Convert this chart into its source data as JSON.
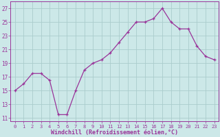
{
  "x": [
    0,
    1,
    2,
    3,
    4,
    5,
    6,
    7,
    8,
    9,
    10,
    11,
    12,
    13,
    14,
    15,
    16,
    17,
    18,
    19,
    20,
    21,
    22,
    23
  ],
  "y": [
    15,
    16,
    17.5,
    17.5,
    16.5,
    11.5,
    11.5,
    15,
    18,
    19,
    19.5,
    20.5,
    22,
    23.5,
    25,
    25,
    25.5,
    27,
    25,
    24,
    24,
    21.5,
    20,
    19.5
  ],
  "line_color": "#993399",
  "marker": "+",
  "bg_color": "#cce8e8",
  "grid_color": "#aacccc",
  "xlabel": "Windchill (Refroidissement éolien,°C)",
  "xlabel_color": "#993399",
  "tick_color": "#993399",
  "axis_color": "#993399",
  "yticks": [
    11,
    13,
    15,
    17,
    19,
    21,
    23,
    25,
    27
  ],
  "xtick_labels": [
    "0",
    "1",
    "2",
    "3",
    "4",
    "5",
    "6",
    "7",
    "8",
    "9",
    "10",
    "11",
    "12",
    "13",
    "14",
    "15",
    "16",
    "17",
    "18",
    "19",
    "20",
    "21",
    "22",
    "23"
  ],
  "xticks": [
    0,
    1,
    2,
    3,
    4,
    5,
    6,
    7,
    8,
    9,
    10,
    11,
    12,
    13,
    14,
    15,
    16,
    17,
    18,
    19,
    20,
    21,
    22,
    23
  ],
  "ylim": [
    10.5,
    28.0
  ],
  "xlim": [
    -0.5,
    23.5
  ]
}
